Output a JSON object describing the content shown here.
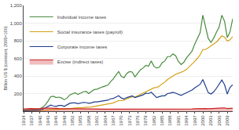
{
  "chart_data": {
    "type": "line",
    "ylabel": "Billion US $ (constant, 2005=100)",
    "x": [
      1934,
      1935,
      1936,
      1937,
      1938,
      1939,
      1940,
      1941,
      1942,
      1943,
      1944,
      1945,
      1946,
      1947,
      1948,
      1949,
      1950,
      1951,
      1952,
      1953,
      1954,
      1955,
      1956,
      1957,
      1958,
      1959,
      1960,
      1961,
      1962,
      1963,
      1964,
      1965,
      1966,
      1967,
      1968,
      1969,
      1970,
      1971,
      1972,
      1973,
      1974,
      1975,
      1976,
      1977,
      1978,
      1979,
      1980,
      1981,
      1982,
      1983,
      1984,
      1985,
      1986,
      1987,
      1988,
      1989,
      1990,
      1991,
      1992,
      1993,
      1994,
      1995,
      1996,
      1997,
      1998,
      1999,
      2000,
      2001,
      2002,
      2003,
      2004,
      2005,
      2006,
      2007,
      2008,
      2009,
      2010,
      2011
    ],
    "series": [
      {
        "name": "Individual income taxes",
        "color": "#4a8c3f",
        "values": [
          15,
          18,
          22,
          26,
          22,
          23,
          26,
          45,
          72,
          115,
          165,
          170,
          155,
          160,
          150,
          130,
          150,
          185,
          200,
          210,
          190,
          205,
          220,
          225,
          200,
          225,
          245,
          250,
          265,
          275,
          285,
          295,
          335,
          365,
          410,
          450,
          395,
          380,
          430,
          450,
          445,
          390,
          430,
          470,
          490,
          520,
          510,
          570,
          510,
          490,
          500,
          550,
          570,
          620,
          620,
          650,
          630,
          565,
          530,
          555,
          605,
          640,
          680,
          760,
          830,
          890,
          1090,
          960,
          825,
          780,
          830,
          895,
          955,
          1090,
          1020,
          835,
          900,
          1050
        ]
      },
      {
        "name": "Social insurance taxes (payroll)",
        "color": "#d4a017",
        "values": [
          5,
          5,
          6,
          8,
          8,
          8,
          9,
          10,
          12,
          15,
          18,
          19,
          20,
          22,
          24,
          24,
          25,
          30,
          33,
          36,
          36,
          38,
          42,
          45,
          44,
          48,
          55,
          60,
          65,
          68,
          72,
          78,
          88,
          95,
          108,
          120,
          120,
          125,
          140,
          155,
          165,
          160,
          175,
          190,
          210,
          225,
          235,
          255,
          265,
          270,
          285,
          310,
          330,
          360,
          380,
          400,
          420,
          430,
          440,
          455,
          475,
          505,
          530,
          565,
          600,
          640,
          700,
          700,
          720,
          740,
          760,
          785,
          820,
          855,
          840,
          795,
          810,
          845
        ]
      },
      {
        "name": "Corporate income taxes",
        "color": "#1f3d8c",
        "values": [
          4,
          5,
          6,
          8,
          7,
          7,
          12,
          22,
          36,
          55,
          70,
          60,
          55,
          65,
          65,
          55,
          70,
          90,
          95,
          95,
          85,
          95,
          100,
          98,
          90,
          95,
          105,
          105,
          110,
          115,
          120,
          125,
          140,
          145,
          160,
          175,
          150,
          140,
          155,
          165,
          175,
          155,
          165,
          175,
          185,
          205,
          200,
          215,
          180,
          155,
          165,
          175,
          175,
          200,
          205,
          215,
          205,
          190,
          180,
          195,
          210,
          225,
          240,
          265,
          285,
          305,
          360,
          280,
          210,
          195,
          220,
          260,
          310,
          355,
          300,
          195,
          270,
          300
        ]
      },
      {
        "name": "Excise (indirect taxes)",
        "color": "#cc2222",
        "type": "area",
        "values": [
          25,
          28,
          30,
          30,
          28,
          28,
          30,
          35,
          38,
          35,
          35,
          36,
          32,
          30,
          30,
          28,
          28,
          28,
          28,
          28,
          25,
          25,
          28,
          28,
          25,
          25,
          28,
          28,
          28,
          26,
          24,
          23,
          23,
          22,
          22,
          23,
          22,
          21,
          22,
          23,
          22,
          22,
          22,
          22,
          22,
          22,
          22,
          23,
          23,
          22,
          22,
          22,
          22,
          22,
          24,
          25,
          24,
          24,
          24,
          25,
          26,
          26,
          26,
          28,
          30,
          32,
          32,
          30,
          28,
          28,
          30,
          32,
          34,
          36,
          38,
          30,
          32,
          35
        ]
      }
    ],
    "xlim": [
      1934,
      2011
    ],
    "xticks": [
      1934,
      1937,
      1940,
      1943,
      1946,
      1949,
      1952,
      1955,
      1958,
      1961,
      1964,
      1967,
      1970,
      1973,
      1976,
      1979,
      1982,
      1985,
      1988,
      1991,
      1994,
      1997,
      2000,
      2003,
      2006,
      2009
    ],
    "ylim": [
      0,
      1200
    ],
    "yticks": [
      200,
      400,
      600,
      800,
      {
        "value": 1000,
        "label": "1,000"
      },
      {
        "value": 1200,
        "label": "1,200"
      }
    ],
    "grid": "y",
    "legend": "upper left"
  }
}
